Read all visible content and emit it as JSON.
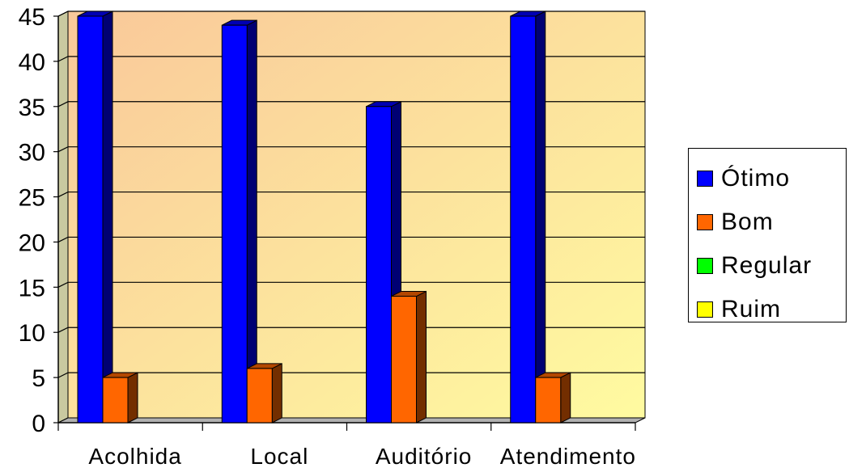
{
  "chart_data": {
    "type": "bar",
    "categories": [
      "Acolhida",
      "Local",
      "Auditório",
      "Atendimento"
    ],
    "series": [
      {
        "name": "Ótimo",
        "values": [
          45,
          44,
          35,
          45
        ],
        "color": "#0000ff"
      },
      {
        "name": "Bom",
        "values": [
          5,
          6,
          14,
          5
        ],
        "color": "#ff6600"
      },
      {
        "name": "Regular",
        "values": [
          0,
          0,
          0,
          0
        ],
        "color": "#00ff00"
      },
      {
        "name": "Ruim",
        "values": [
          0,
          0,
          0,
          0
        ],
        "color": "#ffff00"
      }
    ],
    "ylim": [
      0,
      45
    ],
    "yticks": [
      "0",
      "5",
      "10",
      "15",
      "20",
      "25",
      "30",
      "35",
      "40",
      "45"
    ],
    "grid": true,
    "legend_position": "right"
  }
}
